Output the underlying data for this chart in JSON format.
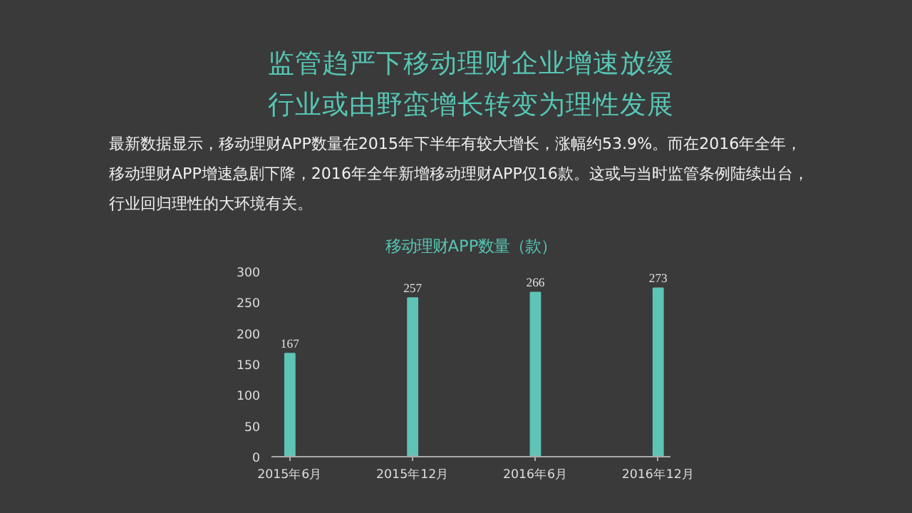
{
  "chart_data": {
    "type": "bar",
    "title": "监管趋严下移动理财企业增速放缓",
    "subtitle": "行业或由野蛮增长转变为理性发展",
    "ylabel": "移动理财APP数量（款）",
    "annotations": [
      "最新数据显示，移动理财APP数量在2015年下半年有较大增长，涨幅约53.9%。而在2016年全年，",
      "移动理财APP增速急剧下降，2016年全年新增移动理财APP仅16款。这或与当时监管条例陆续出台，",
      "行业回归理性的大环境有关。"
    ],
    "categories": [
      "2015年6月",
      "2015年12月",
      "2016年6月",
      "2016年12月"
    ],
    "values": [
      167,
      257,
      266,
      273
    ],
    "color": "#5ec4b6",
    "ylim": [
      0,
      300
    ],
    "yticks": [
      0,
      50,
      100,
      150,
      200,
      250,
      300
    ],
    "data_labels": true,
    "grid": false
  }
}
